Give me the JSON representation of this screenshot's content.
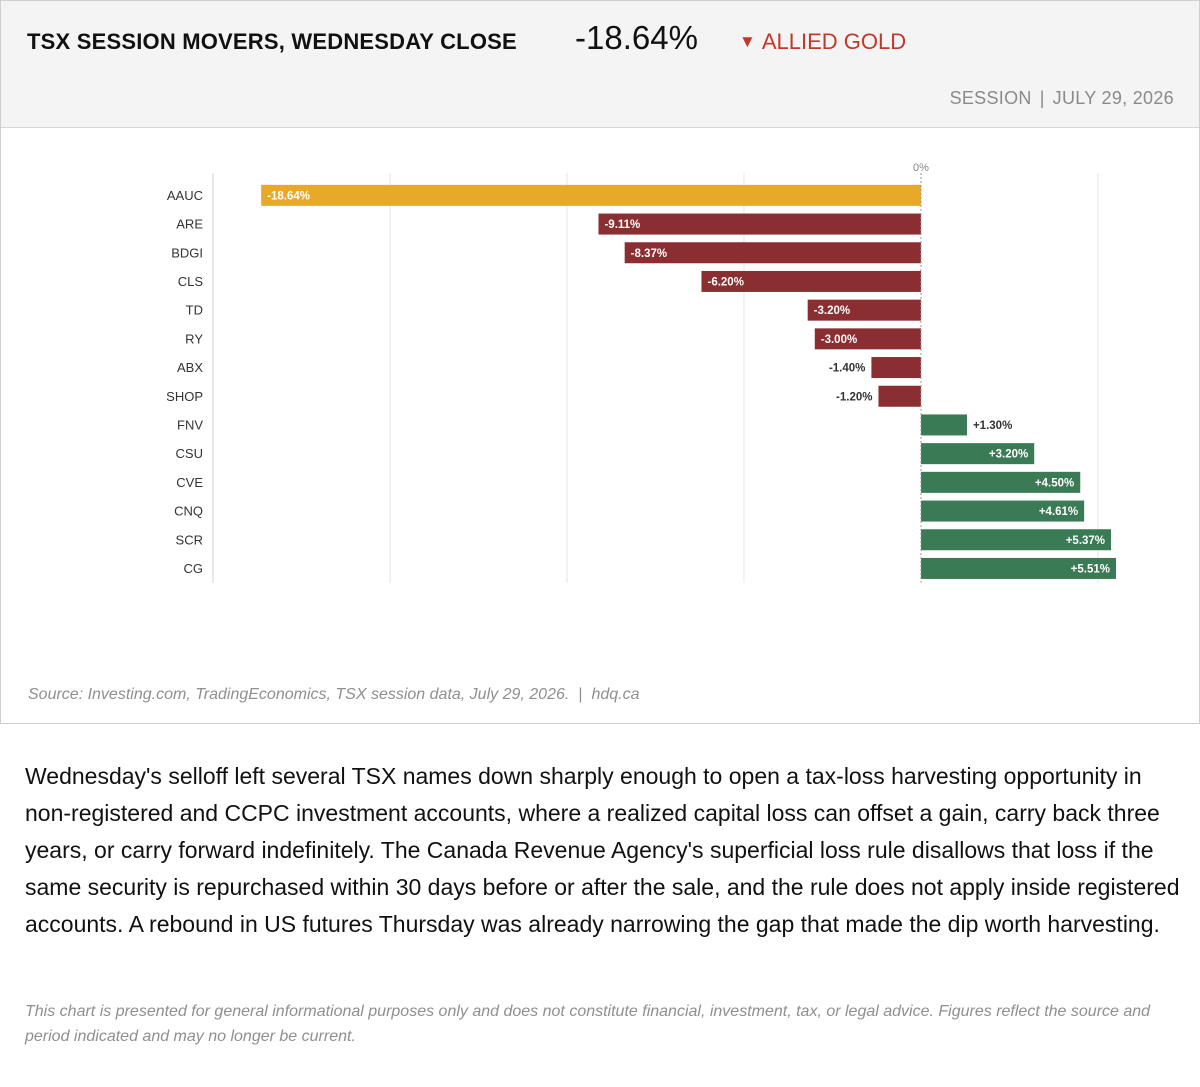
{
  "header": {
    "title": "TSX SESSION MOVERS, WEDNESDAY CLOSE",
    "headline_value": "-18.64%",
    "headline_arrow": "▼",
    "headline_name": "ALLIED GOLD",
    "session_label": "SESSION",
    "session_separator": "|",
    "session_date": "JULY 29, 2026"
  },
  "colors": {
    "highlight": "#E8A92A",
    "negative": "#8B2E32",
    "positive": "#3A7A55",
    "headline_name": "#C0392B"
  },
  "chart_data": {
    "type": "bar",
    "orientation": "horizontal",
    "title": "TSX SESSION MOVERS, WEDNESDAY CLOSE",
    "xlabel": "",
    "ylabel": "",
    "zero_label": "0%",
    "xlim": [
      -20.0,
      5.51
    ],
    "grid": true,
    "legend": "none",
    "categories": [
      "AAUC",
      "ARE",
      "BDGI",
      "CLS",
      "TD",
      "RY",
      "ABX",
      "SHOP",
      "FNV",
      "CSU",
      "CVE",
      "CNQ",
      "SCR",
      "CG"
    ],
    "values": [
      -18.64,
      -9.11,
      -8.37,
      -6.2,
      -3.2,
      -3.0,
      -1.4,
      -1.2,
      1.3,
      3.2,
      4.5,
      4.61,
      5.37,
      5.51
    ],
    "labels": [
      "-18.64%",
      "-9.11%",
      "-8.37%",
      "-6.20%",
      "-3.20%",
      "-3.00%",
      "-1.40%",
      "-1.20%",
      "+1.30%",
      "+3.20%",
      "+4.50%",
      "+4.61%",
      "+5.37%",
      "+5.51%"
    ],
    "highlight_category": "AAUC"
  },
  "source": {
    "text": "Source: Investing.com, TradingEconomics, TSX session data, July 29, 2026.",
    "separator": "|",
    "site": "hdq.ca"
  },
  "body_text": "Wednesday's selloff left several TSX names down sharply enough to open a tax-loss harvesting opportunity in non-registered and CCPC investment accounts, where a realized capital loss can offset a gain, carry back three years, or carry forward indefinitely. The Canada Revenue Agency's superficial loss rule disallows that loss if the same security is repurchased within 30 days before or after the sale, and the rule does not apply inside registered accounts. A rebound in US futures Thursday was already narrowing the gap that made the dip worth harvesting.",
  "disclaimer": "This chart is presented for general informational purposes only and does not constitute financial, investment, tax, or legal advice. Figures reflect the source and period indicated and may no longer be current."
}
